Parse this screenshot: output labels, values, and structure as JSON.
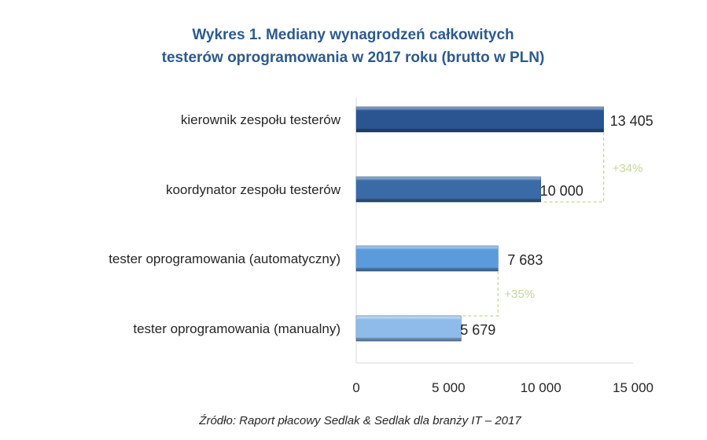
{
  "chart_data": {
    "type": "bar",
    "orientation": "horizontal",
    "title_lines": [
      "Wykres 1. Mediany wynagrodzeń całkowitych",
      "testerów oprogramowania w 2017 roku (brutto w PLN)"
    ],
    "categories": [
      "kierownik zespołu testerów",
      "koordynator zespołu testerów",
      "tester oprogramowania (automatyczny)",
      "tester oprogramowania (manualny)"
    ],
    "values": [
      13405,
      10000,
      7683,
      5679
    ],
    "value_labels": [
      "13 405",
      "10 000",
      "7 683",
      "5 679"
    ],
    "bar_colors": [
      "#2a5590",
      "#3b6ba6",
      "#5b9bdc",
      "#8fbbea"
    ],
    "xlim": [
      0,
      15000
    ],
    "x_ticks": [
      0,
      5000,
      10000,
      15000
    ],
    "x_tick_labels": [
      "0",
      "5 000",
      "10 000",
      "15 000"
    ],
    "annotations": [
      {
        "text": "+34%",
        "from_category": 1,
        "to_category": 0
      },
      {
        "text": "+35%",
        "from_category": 3,
        "to_category": 2
      }
    ],
    "annotation_color": "#c4d79b",
    "grid": false,
    "source": "Źródło: Raport płacowy Sedlak & Sedlak dla branży IT – 2017"
  }
}
